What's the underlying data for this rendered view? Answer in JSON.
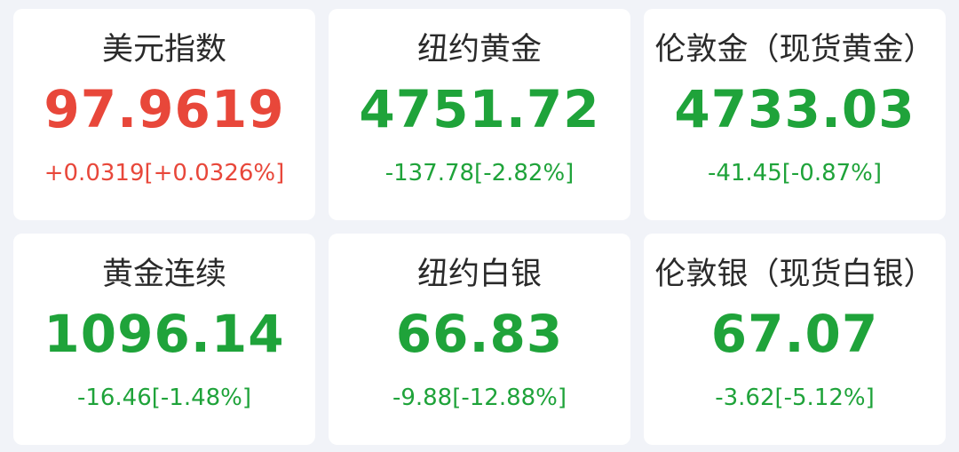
{
  "colors": {
    "up": "#e8473a",
    "down": "#1fa33a"
  },
  "quotes": [
    {
      "name": "美元指数",
      "value": "97.9619",
      "change": "+0.0319[+0.0326%]",
      "direction": "up"
    },
    {
      "name": "纽约黄金",
      "value": "4751.72",
      "change": "-137.78[-2.82%]",
      "direction": "down"
    },
    {
      "name": "伦敦金（现货黄金）",
      "value": "4733.03",
      "change": "-41.45[-0.87%]",
      "direction": "down"
    },
    {
      "name": "黄金连续",
      "value": "1096.14",
      "change": "-16.46[-1.48%]",
      "direction": "down"
    },
    {
      "name": "纽约白银",
      "value": "66.83",
      "change": "-9.88[-12.88%]",
      "direction": "down"
    },
    {
      "name": "伦敦银（现货白银）",
      "value": "67.07",
      "change": "-3.62[-5.12%]",
      "direction": "down"
    }
  ]
}
